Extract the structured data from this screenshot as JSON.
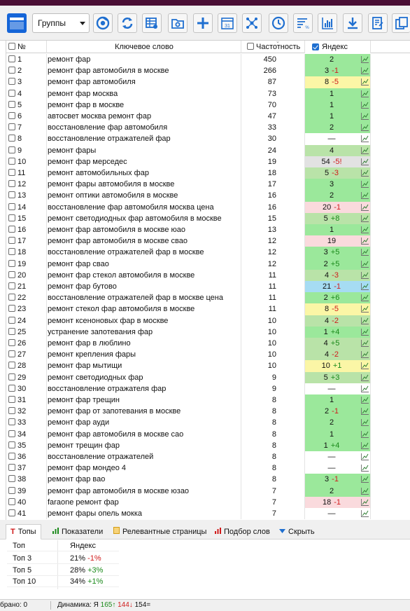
{
  "toolbar": {
    "groups_label": "Группы",
    "buttons": [
      "window-icon",
      "chrome-icon",
      "refresh-icon",
      "table-settings-icon",
      "folder-settings-icon",
      "plus-icon",
      "calendar-icon",
      "network-icon",
      "clock-icon",
      "filter-percent-icon",
      "bar-chart-icon",
      "download-icon",
      "export-icon",
      "copy-icon"
    ],
    "calendar_day": "31"
  },
  "table": {
    "headers": {
      "no": "№",
      "keyword": "Ключевое слово",
      "frequency": "Частотность",
      "yandex": "Яндекс"
    },
    "rows": [
      {
        "n": "1",
        "kw": "ремонт фар",
        "f": "450",
        "pos": "2",
        "d": "",
        "bg": "#9be89b"
      },
      {
        "n": "2",
        "kw": "ремонт фар автомобиля в москве",
        "f": "266",
        "pos": "3",
        "d": "-1",
        "bg": "#9be89b"
      },
      {
        "n": "3",
        "kw": "ремонт фар автомобиля",
        "f": "87",
        "pos": "8",
        "d": "-5",
        "bg": "#fbf6a6"
      },
      {
        "n": "4",
        "kw": "ремонт фар москва",
        "f": "73",
        "pos": "1",
        "d": "",
        "bg": "#9be89b"
      },
      {
        "n": "5",
        "kw": "ремонт фар в москве",
        "f": "70",
        "pos": "1",
        "d": "",
        "bg": "#9be89b"
      },
      {
        "n": "6",
        "kw": "автосвет москва ремонт фар",
        "f": "47",
        "pos": "1",
        "d": "",
        "bg": "#9be89b"
      },
      {
        "n": "7",
        "kw": "восстановление фар автомобиля",
        "f": "33",
        "pos": "2",
        "d": "",
        "bg": "#9be89b"
      },
      {
        "n": "8",
        "kw": "восстановление отражателей фар",
        "f": "30",
        "pos": "—",
        "d": "",
        "bg": "#ffffff"
      },
      {
        "n": "9",
        "kw": "ремонт фары",
        "f": "24",
        "pos": "4",
        "d": "",
        "bg": "#b9e3a8"
      },
      {
        "n": "10",
        "kw": "ремонт фар мерседес",
        "f": "19",
        "pos": "54",
        "d": "-5!",
        "bg": "#e2e2e2"
      },
      {
        "n": "11",
        "kw": "ремонт автомобильных фар",
        "f": "18",
        "pos": "5",
        "d": "-3",
        "bg": "#b9e3a8"
      },
      {
        "n": "12",
        "kw": "ремонт фары автомобиля в москве",
        "f": "17",
        "pos": "3",
        "d": "",
        "bg": "#9be89b"
      },
      {
        "n": "13",
        "kw": "ремонт оптики автомобиля в москве",
        "f": "16",
        "pos": "2",
        "d": "",
        "bg": "#9be89b"
      },
      {
        "n": "14",
        "kw": "восстановление фар автомобиля москва цена",
        "f": "16",
        "pos": "20",
        "d": "-1",
        "bg": "#fadadd"
      },
      {
        "n": "15",
        "kw": "ремонт светодиодных фар автомобиля в москве",
        "f": "15",
        "pos": "5",
        "d": "+8",
        "bg": "#b9e3a8"
      },
      {
        "n": "16",
        "kw": "ремонт фар автомобиля в москве юао",
        "f": "13",
        "pos": "1",
        "d": "",
        "bg": "#9be89b"
      },
      {
        "n": "17",
        "kw": "ремонт фар автомобиля в москве свао",
        "f": "12",
        "pos": "19",
        "d": "",
        "bg": "#fadadd"
      },
      {
        "n": "18",
        "kw": "восстановление отражателей фар в москве",
        "f": "12",
        "pos": "3",
        "d": "+5",
        "bg": "#9be89b"
      },
      {
        "n": "19",
        "kw": "ремонт фар свао",
        "f": "12",
        "pos": "2",
        "d": "+5",
        "bg": "#9be89b"
      },
      {
        "n": "20",
        "kw": "ремонт фар стекол автомобиля в москве",
        "f": "11",
        "pos": "4",
        "d": "-3",
        "bg": "#b9e3a8"
      },
      {
        "n": "21",
        "kw": "ремонт фар бутово",
        "f": "11",
        "pos": "21",
        "d": "-1",
        "bg": "#a6dcf3"
      },
      {
        "n": "22",
        "kw": "восстановление отражателей фар в москве цена",
        "f": "11",
        "pos": "2",
        "d": "+6",
        "bg": "#9be89b"
      },
      {
        "n": "23",
        "kw": "ремонт стекол фар автомобиля в москве",
        "f": "11",
        "pos": "8",
        "d": "-5",
        "bg": "#fbf6a6"
      },
      {
        "n": "24",
        "kw": "ремонт ксеноновых фар в москве",
        "f": "10",
        "pos": "4",
        "d": "-2",
        "bg": "#b9e3a8"
      },
      {
        "n": "25",
        "kw": "устранение запотевания фар",
        "f": "10",
        "pos": "1",
        "d": "+4",
        "bg": "#9be89b"
      },
      {
        "n": "26",
        "kw": "ремонт фар в люблино",
        "f": "10",
        "pos": "4",
        "d": "+5",
        "bg": "#b9e3a8"
      },
      {
        "n": "27",
        "kw": "ремонт крепления фары",
        "f": "10",
        "pos": "4",
        "d": "-2",
        "bg": "#b9e3a8"
      },
      {
        "n": "28",
        "kw": "ремонт фар мытищи",
        "f": "10",
        "pos": "10",
        "d": "+1",
        "bg": "#fbf6a6"
      },
      {
        "n": "29",
        "kw": "ремонт светодиодных фар",
        "f": "9",
        "pos": "5",
        "d": "+3",
        "bg": "#b9e3a8"
      },
      {
        "n": "30",
        "kw": "восстановление отражателя фар",
        "f": "9",
        "pos": "—",
        "d": "",
        "bg": "#ffffff"
      },
      {
        "n": "31",
        "kw": "ремонт фар трещин",
        "f": "8",
        "pos": "1",
        "d": "",
        "bg": "#9be89b"
      },
      {
        "n": "32",
        "kw": "ремонт фар от запотевания в москве",
        "f": "8",
        "pos": "2",
        "d": "-1",
        "bg": "#9be89b"
      },
      {
        "n": "33",
        "kw": "ремонт фар ауди",
        "f": "8",
        "pos": "2",
        "d": "",
        "bg": "#9be89b"
      },
      {
        "n": "34",
        "kw": "ремонт фар автомобиля в москве сао",
        "f": "8",
        "pos": "1",
        "d": "",
        "bg": "#9be89b"
      },
      {
        "n": "35",
        "kw": "ремонт трещин фар",
        "f": "8",
        "pos": "1",
        "d": "+4",
        "bg": "#9be89b"
      },
      {
        "n": "36",
        "kw": "восстановление отражателей",
        "f": "8",
        "pos": "—",
        "d": "",
        "bg": "#ffffff"
      },
      {
        "n": "37",
        "kw": "ремонт фар мондео 4",
        "f": "8",
        "pos": "—",
        "d": "",
        "bg": "#ffffff"
      },
      {
        "n": "38",
        "kw": "ремонт фар вао",
        "f": "8",
        "pos": "3",
        "d": "-1",
        "bg": "#9be89b"
      },
      {
        "n": "39",
        "kw": "ремонт фар автомобиля в москве юзао",
        "f": "7",
        "pos": "2",
        "d": "",
        "bg": "#9be89b"
      },
      {
        "n": "40",
        "kw": "faraone ремонт фар",
        "f": "7",
        "pos": "18",
        "d": "-1",
        "bg": "#fadadd"
      },
      {
        "n": "41",
        "kw": "ремонт фары опель мокка",
        "f": "7",
        "pos": "—",
        "d": "",
        "bg": "#ffffff"
      }
    ]
  },
  "tabs": [
    {
      "label": "Топы",
      "icon": "T",
      "color": "#d01a1a",
      "active": true
    },
    {
      "label": "Показатели",
      "icon": "bars",
      "color": "#1b8a1b",
      "active": false
    },
    {
      "label": "Релевантные страницы",
      "icon": "page",
      "color": "#e0a81c",
      "active": false
    },
    {
      "label": "Подбор слов",
      "icon": "bars",
      "color": "#d01a1a",
      "active": false
    },
    {
      "label": "Скрыть",
      "icon": "chevron",
      "color": "#1f6fd0",
      "active": false
    }
  ],
  "tops": {
    "header_top": "Топ",
    "header_engine": "Яндекс",
    "rows": [
      {
        "label": "Топ 3",
        "value": "21%",
        "delta": "-1%",
        "dir": "down"
      },
      {
        "label": "Топ 5",
        "value": "28%",
        "delta": "+3%",
        "dir": "up"
      },
      {
        "label": "Топ 10",
        "value": "34%",
        "delta": "+1%",
        "dir": "up"
      }
    ]
  },
  "status": {
    "selected": "брано: 0",
    "dynamics_label": "Динамика:",
    "engine": "Я",
    "up": "165↑",
    "down": "144↓",
    "same": "154="
  }
}
